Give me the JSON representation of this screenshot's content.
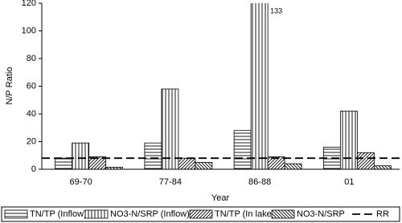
{
  "chart_data": {
    "type": "bar",
    "y_label": "N/P Ratio",
    "x_label": "Year",
    "categories": [
      "69-70",
      "77-84",
      "86-88",
      "01"
    ],
    "series": [
      {
        "name": "TN/TP (Inflow)",
        "color": "#000000",
        "pattern": "horizontal",
        "values": [
          8,
          19,
          28,
          16
        ]
      },
      {
        "name": "NO3-N/SRP (Inflow)",
        "color": "#000000",
        "pattern": "vertical",
        "values": [
          19,
          58,
          133,
          42
        ],
        "value_labels": [
          null,
          null,
          "133",
          null
        ]
      },
      {
        "name": "TN/TP (In lake)",
        "color": "#000000",
        "pattern": "diagonal-up",
        "values": [
          9,
          8,
          9,
          12
        ]
      },
      {
        "name": "NO3-N/SRP",
        "color": "#000000",
        "pattern": "diagonal-down",
        "values": [
          1.5,
          5,
          4,
          2.5
        ]
      }
    ],
    "reference_line": {
      "name": "RR",
      "value": 8,
      "color": "#000000",
      "style": "dashed"
    },
    "ylim": [
      0,
      120
    ],
    "yticks": [
      0,
      20,
      40,
      60,
      80,
      100,
      120
    ],
    "legend": "bottom"
  }
}
